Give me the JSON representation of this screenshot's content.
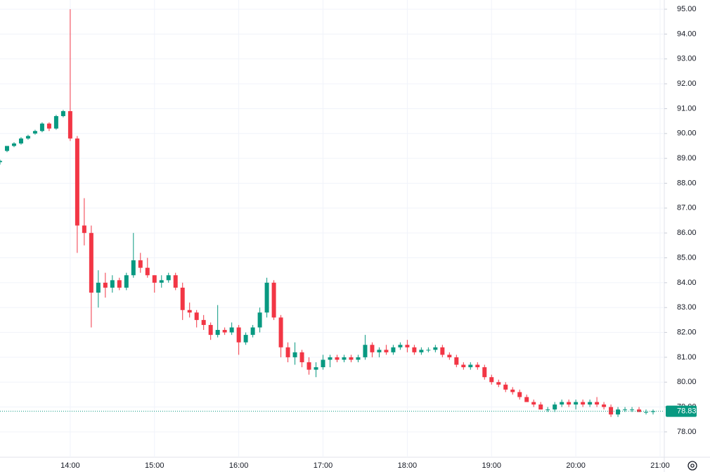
{
  "chart_data": {
    "type": "candlestick",
    "x": [
      "13:10",
      "13:15",
      "13:20",
      "13:25",
      "13:30",
      "13:35",
      "13:40",
      "13:45",
      "13:50",
      "13:55",
      "14:00",
      "14:05",
      "14:10",
      "14:15",
      "14:20",
      "14:25",
      "14:30",
      "14:35",
      "14:40",
      "14:45",
      "14:50",
      "14:55",
      "15:00",
      "15:05",
      "15:10",
      "15:15",
      "15:20",
      "15:25",
      "15:30",
      "15:35",
      "15:40",
      "15:45",
      "15:50",
      "15:55",
      "16:00",
      "16:05",
      "16:10",
      "16:15",
      "16:20",
      "16:25",
      "16:30",
      "16:35",
      "16:40",
      "16:45",
      "16:50",
      "16:55",
      "17:00",
      "17:05",
      "17:10",
      "17:15",
      "17:20",
      "17:25",
      "17:30",
      "17:35",
      "17:40",
      "17:45",
      "17:50",
      "17:55",
      "18:00",
      "18:05",
      "18:10",
      "18:15",
      "18:20",
      "18:25",
      "18:30",
      "18:35",
      "18:40",
      "18:45",
      "18:50",
      "18:55",
      "19:00",
      "19:05",
      "19:10",
      "19:15",
      "19:20",
      "19:25",
      "19:30",
      "19:35",
      "19:40",
      "19:45",
      "19:50",
      "19:55",
      "20:00",
      "20:05",
      "20:10",
      "20:15",
      "20:20",
      "20:25",
      "20:30",
      "20:35",
      "20:40",
      "20:45",
      "20:50",
      "20:55"
    ],
    "open": [
      88.85,
      89.3,
      89.5,
      89.6,
      89.8,
      90.0,
      90.1,
      90.4,
      90.2,
      90.7,
      90.9,
      89.8,
      86.3,
      86.0,
      83.6,
      84.0,
      83.8,
      84.1,
      83.8,
      84.3,
      84.9,
      84.6,
      84.3,
      84.0,
      84.1,
      84.3,
      83.8,
      82.9,
      82.8,
      82.5,
      82.3,
      81.9,
      82.1,
      82.0,
      82.2,
      81.6,
      81.9,
      82.2,
      82.8,
      84.0,
      82.6,
      81.4,
      81.0,
      81.2,
      80.8,
      80.5,
      80.6,
      80.9,
      81.0,
      80.9,
      81.0,
      80.9,
      81.0,
      81.5,
      81.2,
      81.3,
      81.2,
      81.4,
      81.5,
      81.4,
      81.2,
      81.3,
      81.3,
      81.4,
      81.1,
      81.0,
      80.7,
      80.6,
      80.7,
      80.6,
      80.2,
      80.0,
      79.9,
      79.7,
      79.6,
      79.4,
      79.2,
      79.1,
      78.9,
      78.9,
      79.1,
      79.2,
      79.1,
      79.2,
      79.1,
      79.2,
      79.1,
      79.0,
      78.7,
      78.9,
      78.9,
      78.9,
      78.8,
      78.8
    ],
    "high": [
      88.95,
      89.5,
      89.65,
      89.85,
      89.95,
      90.15,
      90.45,
      90.45,
      90.75,
      90.95,
      95.0,
      89.9,
      87.4,
      86.3,
      84.5,
      84.4,
      84.3,
      84.2,
      84.4,
      86.0,
      85.2,
      85.0,
      84.3,
      84.3,
      84.4,
      84.4,
      84.0,
      83.2,
      82.9,
      82.7,
      82.4,
      83.1,
      82.2,
      82.4,
      82.3,
      82.0,
      82.3,
      83.0,
      84.2,
      84.1,
      82.7,
      81.6,
      81.6,
      81.3,
      81.0,
      80.8,
      81.1,
      81.1,
      81.1,
      81.1,
      81.1,
      81.1,
      81.9,
      81.6,
      81.4,
      81.5,
      81.5,
      81.6,
      81.7,
      81.5,
      81.4,
      81.4,
      81.5,
      81.5,
      81.2,
      81.1,
      80.8,
      80.8,
      80.8,
      80.7,
      80.3,
      80.1,
      80.0,
      79.8,
      79.7,
      79.5,
      79.3,
      79.2,
      79.0,
      79.2,
      79.3,
      79.3,
      79.3,
      79.3,
      79.3,
      79.4,
      79.2,
      79.1,
      79.0,
      79.0,
      79.0,
      79.0,
      78.9,
      78.9
    ],
    "low": [
      88.75,
      89.25,
      89.45,
      89.55,
      89.75,
      89.95,
      90.05,
      90.1,
      90.15,
      90.65,
      89.7,
      85.2,
      85.5,
      82.2,
      83.0,
      83.4,
      83.6,
      83.7,
      83.7,
      84.2,
      84.4,
      84.2,
      83.6,
      83.8,
      84.0,
      83.7,
      82.5,
      82.6,
      82.2,
      82.1,
      81.7,
      81.8,
      81.9,
      81.9,
      81.1,
      81.5,
      81.8,
      82.0,
      82.6,
      82.5,
      81.0,
      80.8,
      80.7,
      80.6,
      80.3,
      80.2,
      80.5,
      80.6,
      80.8,
      80.8,
      80.8,
      80.8,
      80.9,
      81.0,
      81.0,
      81.1,
      81.1,
      81.3,
      81.2,
      81.1,
      81.1,
      81.2,
      81.2,
      81.0,
      80.9,
      80.6,
      80.5,
      80.5,
      80.5,
      80.1,
      79.9,
      79.8,
      79.6,
      79.5,
      79.3,
      79.2,
      79.0,
      78.9,
      78.8,
      78.8,
      79.0,
      79.0,
      78.9,
      79.0,
      79.0,
      79.0,
      78.9,
      78.6,
      78.6,
      78.8,
      78.8,
      78.8,
      78.7,
      78.7
    ],
    "close": [
      88.9,
      89.5,
      89.6,
      89.8,
      89.9,
      90.1,
      90.4,
      90.2,
      90.7,
      90.9,
      89.8,
      86.3,
      86.0,
      83.6,
      84.0,
      83.8,
      84.1,
      83.8,
      84.3,
      84.9,
      84.6,
      84.3,
      84.0,
      84.1,
      84.3,
      83.8,
      82.9,
      82.8,
      82.5,
      82.3,
      81.9,
      82.1,
      82.0,
      82.2,
      81.6,
      81.9,
      82.2,
      82.8,
      84.0,
      82.6,
      81.4,
      81.0,
      81.2,
      80.8,
      80.5,
      80.6,
      80.9,
      81.0,
      80.9,
      81.0,
      80.9,
      81.0,
      81.5,
      81.2,
      81.3,
      81.2,
      81.4,
      81.5,
      81.4,
      81.2,
      81.3,
      81.3,
      81.4,
      81.1,
      81.0,
      80.7,
      80.6,
      80.7,
      80.6,
      80.2,
      80.0,
      79.9,
      79.7,
      79.6,
      79.4,
      79.2,
      79.1,
      78.9,
      78.9,
      79.1,
      79.2,
      79.1,
      79.2,
      79.1,
      79.2,
      79.1,
      79.0,
      78.7,
      78.9,
      78.9,
      78.9,
      78.8,
      78.8,
      78.83
    ],
    "up_color": "#089981",
    "down_color": "#f23645",
    "xlim": [
      "13:10",
      "21:03"
    ],
    "xticks": [
      "14:00",
      "15:00",
      "16:00",
      "17:00",
      "18:00",
      "19:00",
      "20:00",
      "21:00"
    ],
    "ylim": [
      76.98,
      95.37
    ],
    "yticks": [
      {
        "value": 78,
        "label": "78.00"
      },
      {
        "value": 79,
        "label": "79.00"
      },
      {
        "value": 80,
        "label": "80.00"
      },
      {
        "value": 81,
        "label": "81.00"
      },
      {
        "value": 82,
        "label": "82.00"
      },
      {
        "value": 83,
        "label": "83.00"
      },
      {
        "value": 84,
        "label": "84.00"
      },
      {
        "value": 85,
        "label": "85.00"
      },
      {
        "value": 86,
        "label": "86.00"
      },
      {
        "value": 87,
        "label": "87.00"
      },
      {
        "value": 88,
        "label": "88.00"
      },
      {
        "value": 89,
        "label": "89.00"
      },
      {
        "value": 90,
        "label": "90.00"
      },
      {
        "value": 91,
        "label": "91.00"
      },
      {
        "value": 92,
        "label": "92.00"
      },
      {
        "value": 93,
        "label": "93.00"
      },
      {
        "value": 94,
        "label": "94.00"
      },
      {
        "value": 95,
        "label": "95.00"
      }
    ],
    "last_price": 78.83,
    "grid": true
  }
}
